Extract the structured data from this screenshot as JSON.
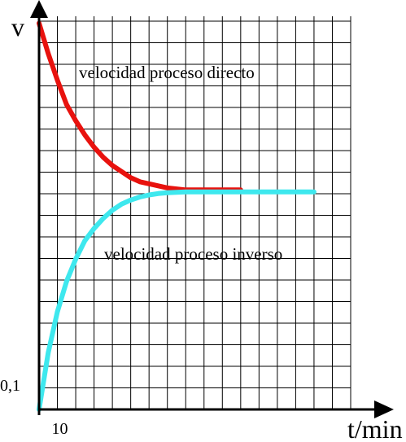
{
  "chart_data": {
    "type": "line",
    "title": "",
    "xlabel": "t/min",
    "ylabel": "v",
    "grid": true,
    "x_ticks": [
      {
        "value": 10,
        "label": "10"
      }
    ],
    "y_ticks": [
      {
        "value": 0.1,
        "label": "0,1"
      }
    ],
    "xlim": [
      0,
      170
    ],
    "ylim": [
      0,
      1.95
    ],
    "series": [
      {
        "label": "velocidad proceso directo",
        "color": "#e8120e",
        "x": [
          0,
          5,
          10,
          15,
          20,
          25,
          30,
          35,
          40,
          45,
          50,
          55,
          60,
          65,
          70,
          80,
          90,
          100,
          110
        ],
        "y": [
          1.9,
          1.75,
          1.62,
          1.5,
          1.42,
          1.35,
          1.29,
          1.24,
          1.2,
          1.17,
          1.14,
          1.12,
          1.11,
          1.1,
          1.09,
          1.08,
          1.08,
          1.08,
          1.08
        ]
      },
      {
        "label": "velocidad proceso inverso",
        "color": "#3ee8ee",
        "x": [
          0,
          5,
          10,
          15,
          20,
          25,
          30,
          35,
          40,
          45,
          50,
          55,
          60,
          65,
          70,
          75,
          80,
          90,
          100,
          120,
          140,
          150
        ],
        "y": [
          0,
          0.28,
          0.48,
          0.63,
          0.74,
          0.83,
          0.89,
          0.94,
          0.98,
          1.01,
          1.03,
          1.045,
          1.055,
          1.062,
          1.066,
          1.068,
          1.07,
          1.07,
          1.07,
          1.07,
          1.07,
          1.07
        ]
      }
    ]
  },
  "colors": {
    "grid": "#000000",
    "axis": "#000000"
  }
}
